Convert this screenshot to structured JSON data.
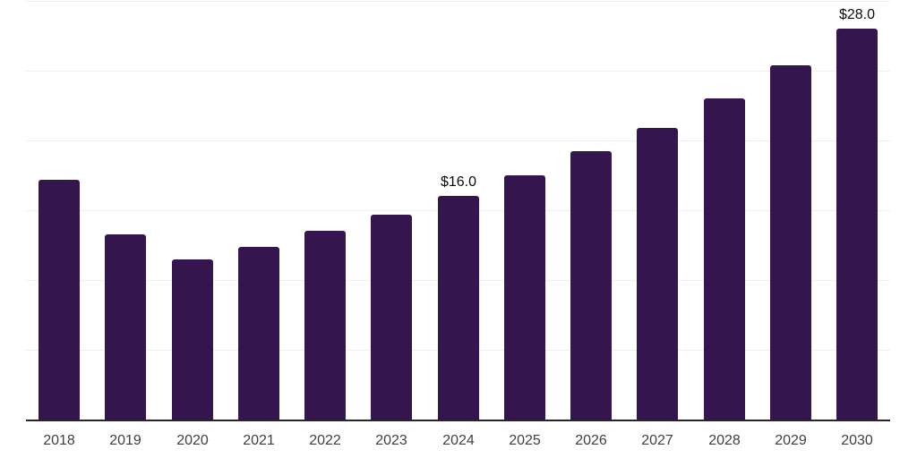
{
  "chart_data": {
    "type": "bar",
    "title": "",
    "xlabel": "",
    "ylabel": "",
    "categories": [
      "2018",
      "2019",
      "2020",
      "2021",
      "2022",
      "2023",
      "2024",
      "2025",
      "2026",
      "2027",
      "2028",
      "2029",
      "2030"
    ],
    "values": [
      17.2,
      13.3,
      11.5,
      12.4,
      13.5,
      14.7,
      16.0,
      17.5,
      19.2,
      20.9,
      23.0,
      25.4,
      28.0
    ],
    "series_name": "",
    "data_labels": {
      "2024": "$16.0",
      "2030": "$28.0"
    },
    "ylim": [
      0,
      30
    ],
    "gridline_step": 5,
    "grid": "horizontal",
    "legend": "none"
  },
  "colors": {
    "bar": "#35154d",
    "axis_line": "#262626",
    "gridline": "#efefef",
    "tick_label": "#404040",
    "data_label": "#0a0a0a",
    "background": "#ffffff"
  }
}
